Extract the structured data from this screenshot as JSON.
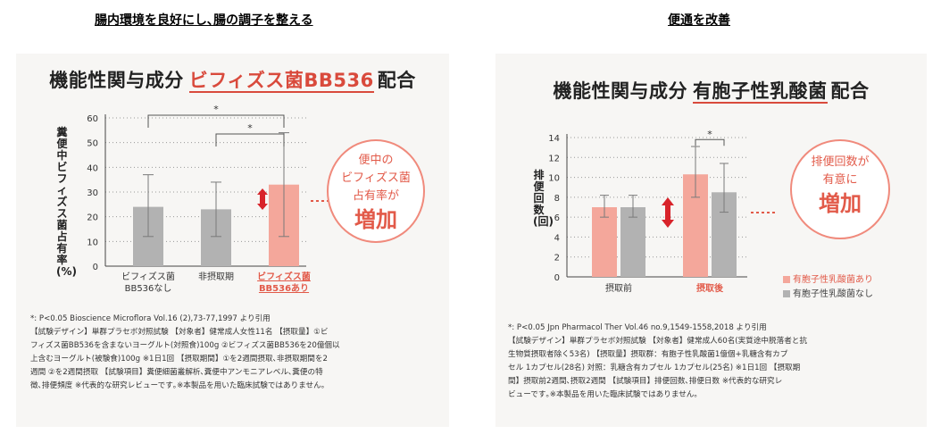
{
  "headings": {
    "left": "腸内環境を良好にし､腸の調子を整える",
    "right": "便通を改善"
  },
  "left_panel": {
    "title_prefix": "機能性関与成分",
    "title_highlight": "ビフィズス菌BB536",
    "title_suffix": "配合",
    "ylabel": "糞便中ビフィズス菌占有率(%)",
    "callout": {
      "line1": "便中の",
      "line2": "ビフィズス菌",
      "line3": "占有率が",
      "big": "増加"
    },
    "notes": [
      "*: P<0.05   Bioscience Microflora Vol.16 (2),73-77,1997 より引用",
      "【試験デザイン】単群プラセボ対照試験  【対象者】健常成人女性11名  【摂取量】①ビ",
      "フィズス菌BB536を含まないヨーグルト(対照食)100g  ②ビフィズス菌BB536を20億個以",
      "上含むヨーグルト(被験食)100g  ※1日1回  【摂取期間】①を2週間摂取､非摂取期間を2",
      "週間  ②を2週間摂取  【試験項目】糞便細菌叢解析､糞便中アンモニアレベル､糞便の特",
      "徴､排便頻度   ※代表的な研究レビューです｡※本製品を用いた臨床試験ではありません｡"
    ]
  },
  "right_panel": {
    "title_prefix": "機能性関与成分",
    "title_highlight": "有胞子性乳酸菌",
    "title_suffix": "配合",
    "ylabel": "排便回数(回)",
    "callout": {
      "line1": "排便回数が",
      "line2": "有意に",
      "big": "増加"
    },
    "legend": [
      "有胞子性乳酸菌あり",
      "有胞子性乳酸菌なし"
    ],
    "notes": [
      "*: P<0.05   Jpn Pharmacol Ther Vol.46 no.9,1549-1558,2018 より引用",
      "【試験デザイン】単群プラセボ対照試験  【対象者】健常成人60名(実質途中脱落者と抗",
      "生物質摂取者除く53名)  【摂取量】摂取群：有胞子性乳酸菌1億個+乳糖含有カプ",
      "セル 1カプセル(28名)  対照：乳糖含有カプセル 1カプセル(25名) ※1日1回 【摂取期",
      "間】摂取前2週間､摂取2週間  【試験項目】排便回数､排便日数   ※代表的な研究レ",
      "ビューです｡※本製品を用いた臨床試験ではありません｡"
    ]
  },
  "colors": {
    "accent": "#e25a49",
    "highlight_bar": "#f4a79b",
    "grey_bar": "#b2b2b2",
    "error_bar": "#7a7a7a"
  },
  "chart_data": [
    {
      "type": "bar",
      "categories": [
        "ビフィズス菌\nBB536なし",
        "非摂取期",
        "ビフィズス菌\nBB536あり"
      ],
      "values": [
        24,
        23,
        33
      ],
      "errors_upper": [
        37,
        34,
        54
      ],
      "errors_lower": [
        12,
        12,
        12
      ],
      "highlight": [
        false,
        false,
        true
      ],
      "ylabel": "糞便中ビフィズス菌占有率(%)",
      "ylim": [
        0,
        60
      ],
      "yticks": [
        0,
        10,
        20,
        30,
        40,
        50,
        60
      ],
      "grid": "dotted horizontal",
      "significance": [
        {
          "from": 0,
          "to": 2,
          "label": "*"
        },
        {
          "from": 1,
          "to": 2,
          "label": "*"
        }
      ]
    },
    {
      "type": "bar",
      "categories": [
        "摂取前",
        "摂取後"
      ],
      "series": [
        {
          "name": "有胞子性乳酸菌あり",
          "values": [
            7.0,
            10.3
          ],
          "errors_upper": [
            8.2,
            13.1
          ],
          "errors_lower": [
            6.0,
            8.0
          ]
        },
        {
          "name": "有胞子性乳酸菌なし",
          "values": [
            7.0,
            8.5
          ],
          "errors_upper": [
            8.2,
            11.4
          ],
          "errors_lower": [
            6.0,
            6.5
          ]
        }
      ],
      "ylabel": "排便回数(回)",
      "ylim": [
        0,
        14
      ],
      "yticks": [
        0,
        2,
        4,
        6,
        8,
        10,
        12,
        14
      ],
      "grid": "dotted horizontal",
      "legend_position": "bottom-right",
      "significance": [
        {
          "category": 1,
          "label": "*"
        }
      ]
    }
  ]
}
